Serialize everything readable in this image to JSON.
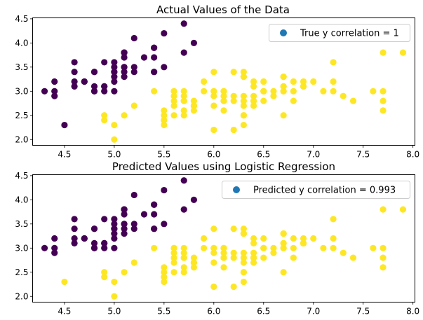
{
  "colors": {
    "class0": "#440154",
    "class1": "#fde725",
    "legend_marker": "#1f77b4",
    "axes": "#000000",
    "legend_border": "#cccccc"
  },
  "chart_data": [
    {
      "type": "scatter",
      "title": "Actual Values of the Data",
      "xlim": [
        4.18,
        8.02
      ],
      "ylim": [
        1.88,
        4.52
      ],
      "xticks": [
        4.5,
        5.0,
        5.5,
        6.0,
        6.5,
        7.0,
        7.5,
        8.0
      ],
      "xtick_labels": [
        "4.5",
        "5.0",
        "5.5",
        "6.0",
        "6.5",
        "7.0",
        "7.5",
        "8.0"
      ],
      "yticks": [
        2.0,
        2.5,
        3.0,
        3.5,
        4.0,
        4.5
      ],
      "ytick_labels": [
        "2.0",
        "2.5",
        "3.0",
        "3.5",
        "4.0",
        "4.5"
      ],
      "legend": {
        "label": "True y correlation = 1",
        "position": "upper right"
      },
      "grid": false,
      "series": [
        {
          "class": 0,
          "color": "#440154",
          "x": [
            4.3,
            4.4,
            4.4,
            4.4,
            4.5,
            4.6,
            4.6,
            4.6,
            4.6,
            4.7,
            4.7,
            4.8,
            4.8,
            4.8,
            4.8,
            4.8,
            4.9,
            4.9,
            4.9,
            4.9,
            5.0,
            5.0,
            5.0,
            5.0,
            5.0,
            5.0,
            5.0,
            5.1,
            5.1,
            5.1,
            5.1,
            5.1,
            5.1,
            5.1,
            5.1,
            5.2,
            5.2,
            5.2,
            5.3,
            5.4,
            5.4,
            5.4,
            5.4,
            5.4,
            5.5,
            5.5,
            5.7,
            5.7,
            5.8
          ],
          "y": [
            3.0,
            2.9,
            3.0,
            3.2,
            2.3,
            3.1,
            3.2,
            3.4,
            3.6,
            3.2,
            3.2,
            3.0,
            3.0,
            3.1,
            3.4,
            3.4,
            3.0,
            3.1,
            3.1,
            3.6,
            3.0,
            3.2,
            3.3,
            3.4,
            3.4,
            3.5,
            3.6,
            3.3,
            3.4,
            3.5,
            3.5,
            3.7,
            3.8,
            3.8,
            3.8,
            3.4,
            3.5,
            4.1,
            3.7,
            3.4,
            3.4,
            3.7,
            3.9,
            3.9,
            3.5,
            4.2,
            3.8,
            4.4,
            4.0
          ]
        },
        {
          "class": 1,
          "color": "#fde725",
          "x": [
            4.9,
            4.9,
            5.0,
            5.0,
            5.1,
            5.2,
            5.4,
            5.5,
            5.5,
            5.5,
            5.5,
            5.5,
            5.6,
            5.6,
            5.6,
            5.6,
            5.6,
            5.6,
            5.7,
            5.7,
            5.7,
            5.7,
            5.7,
            5.7,
            5.8,
            5.8,
            5.8,
            5.8,
            5.8,
            5.9,
            5.9,
            6.0,
            6.0,
            6.0,
            6.0,
            6.0,
            6.0,
            6.1,
            6.1,
            6.1,
            6.1,
            6.1,
            6.1,
            6.2,
            6.2,
            6.2,
            6.2,
            6.3,
            6.3,
            6.3,
            6.3,
            6.3,
            6.3,
            6.3,
            6.3,
            6.3,
            6.4,
            6.4,
            6.4,
            6.4,
            6.4,
            6.4,
            6.5,
            6.5,
            6.5,
            6.5,
            6.5,
            6.6,
            6.6,
            6.7,
            6.7,
            6.7,
            6.7,
            6.7,
            6.7,
            6.7,
            6.8,
            6.8,
            6.8,
            6.9,
            6.9,
            6.9,
            6.9,
            7.0,
            7.1,
            7.2,
            7.2,
            7.2,
            7.3,
            7.4,
            7.6,
            7.7,
            7.7,
            7.7,
            7.7,
            7.9
          ],
          "y": [
            2.4,
            2.5,
            2.0,
            2.3,
            2.5,
            2.7,
            3.0,
            2.3,
            2.4,
            2.4,
            2.5,
            2.6,
            2.5,
            2.7,
            2.8,
            2.9,
            3.0,
            3.0,
            2.5,
            2.6,
            2.8,
            2.8,
            2.9,
            3.0,
            2.6,
            2.7,
            2.7,
            2.7,
            2.8,
            3.0,
            3.2,
            2.2,
            2.7,
            2.9,
            3.0,
            3.0,
            3.4,
            2.6,
            2.8,
            2.8,
            2.9,
            3.0,
            3.0,
            2.2,
            2.8,
            2.9,
            3.4,
            2.3,
            2.5,
            2.5,
            2.7,
            2.8,
            2.9,
            3.3,
            3.3,
            3.4,
            2.7,
            2.8,
            2.8,
            2.9,
            3.1,
            3.2,
            2.8,
            3.0,
            3.0,
            3.0,
            3.2,
            2.9,
            3.0,
            2.5,
            3.0,
            3.0,
            3.1,
            3.1,
            3.3,
            3.3,
            2.8,
            3.0,
            3.2,
            3.1,
            3.1,
            3.1,
            3.2,
            3.2,
            3.0,
            3.0,
            3.2,
            3.6,
            2.9,
            2.8,
            3.0,
            2.6,
            2.8,
            3.0,
            3.8,
            3.8
          ]
        }
      ]
    },
    {
      "type": "scatter",
      "title": "Predicted Values using Logistic Regression",
      "xlim": [
        4.18,
        8.02
      ],
      "ylim": [
        1.88,
        4.52
      ],
      "xticks": [
        4.5,
        5.0,
        5.5,
        6.0,
        6.5,
        7.0,
        7.5,
        8.0
      ],
      "xtick_labels": [
        "4.5",
        "5.0",
        "5.5",
        "6.0",
        "6.5",
        "7.0",
        "7.5",
        "8.0"
      ],
      "yticks": [
        2.0,
        2.5,
        3.0,
        3.5,
        4.0,
        4.5
      ],
      "ytick_labels": [
        "2.0",
        "2.5",
        "3.0",
        "3.5",
        "4.0",
        "4.5"
      ],
      "legend": {
        "label": "Predicted y correlation = 0.993",
        "position": "upper right"
      },
      "grid": false,
      "series": [
        {
          "class": 0,
          "color": "#440154",
          "x": [
            4.3,
            4.4,
            4.4,
            4.4,
            4.6,
            4.6,
            4.6,
            4.6,
            4.7,
            4.7,
            4.8,
            4.8,
            4.8,
            4.8,
            4.8,
            4.9,
            4.9,
            4.9,
            4.9,
            5.0,
            5.0,
            5.0,
            5.0,
            5.0,
            5.0,
            5.0,
            5.1,
            5.1,
            5.1,
            5.1,
            5.1,
            5.1,
            5.1,
            5.1,
            5.2,
            5.2,
            5.2,
            5.3,
            5.4,
            5.4,
            5.4,
            5.4,
            5.4,
            5.5,
            5.5,
            5.7,
            5.7,
            5.8
          ],
          "y": [
            3.0,
            2.9,
            3.0,
            3.2,
            3.1,
            3.2,
            3.4,
            3.6,
            3.2,
            3.2,
            3.0,
            3.0,
            3.1,
            3.4,
            3.4,
            3.0,
            3.1,
            3.1,
            3.6,
            3.0,
            3.2,
            3.3,
            3.4,
            3.4,
            3.5,
            3.6,
            3.3,
            3.4,
            3.5,
            3.5,
            3.7,
            3.8,
            3.8,
            3.8,
            3.4,
            3.5,
            4.1,
            3.7,
            3.4,
            3.4,
            3.7,
            3.9,
            3.9,
            3.5,
            4.2,
            3.8,
            4.4,
            4.0
          ]
        },
        {
          "class": 1,
          "color": "#fde725",
          "x": [
            4.5,
            4.9,
            4.9,
            5.0,
            5.0,
            5.1,
            5.2,
            5.4,
            5.5,
            5.5,
            5.5,
            5.5,
            5.5,
            5.6,
            5.6,
            5.6,
            5.6,
            5.6,
            5.6,
            5.7,
            5.7,
            5.7,
            5.7,
            5.7,
            5.7,
            5.8,
            5.8,
            5.8,
            5.8,
            5.8,
            5.9,
            5.9,
            6.0,
            6.0,
            6.0,
            6.0,
            6.0,
            6.0,
            6.1,
            6.1,
            6.1,
            6.1,
            6.1,
            6.1,
            6.2,
            6.2,
            6.2,
            6.2,
            6.3,
            6.3,
            6.3,
            6.3,
            6.3,
            6.3,
            6.3,
            6.3,
            6.3,
            6.4,
            6.4,
            6.4,
            6.4,
            6.4,
            6.4,
            6.5,
            6.5,
            6.5,
            6.5,
            6.5,
            6.6,
            6.6,
            6.7,
            6.7,
            6.7,
            6.7,
            6.7,
            6.7,
            6.7,
            6.8,
            6.8,
            6.8,
            6.9,
            6.9,
            6.9,
            6.9,
            7.0,
            7.1,
            7.2,
            7.2,
            7.2,
            7.3,
            7.4,
            7.6,
            7.7,
            7.7,
            7.7,
            7.7,
            7.9
          ],
          "y": [
            2.3,
            2.4,
            2.5,
            2.0,
            2.3,
            2.5,
            2.7,
            3.0,
            2.3,
            2.4,
            2.4,
            2.5,
            2.6,
            2.5,
            2.7,
            2.8,
            2.9,
            3.0,
            3.0,
            2.5,
            2.6,
            2.8,
            2.8,
            2.9,
            3.0,
            2.6,
            2.7,
            2.7,
            2.7,
            2.8,
            3.0,
            3.2,
            2.2,
            2.7,
            2.9,
            3.0,
            3.0,
            3.4,
            2.6,
            2.8,
            2.8,
            2.9,
            3.0,
            3.0,
            2.2,
            2.8,
            2.9,
            3.4,
            2.3,
            2.5,
            2.5,
            2.7,
            2.8,
            2.9,
            3.3,
            3.3,
            3.4,
            2.7,
            2.8,
            2.8,
            2.9,
            3.1,
            3.2,
            2.8,
            3.0,
            3.0,
            3.0,
            3.2,
            2.9,
            3.0,
            2.5,
            3.0,
            3.0,
            3.1,
            3.1,
            3.3,
            3.3,
            2.8,
            3.0,
            3.2,
            3.1,
            3.1,
            3.1,
            3.2,
            3.2,
            3.0,
            3.0,
            3.2,
            3.6,
            2.9,
            2.8,
            3.0,
            2.6,
            2.8,
            3.0,
            3.8,
            3.8
          ]
        }
      ]
    }
  ]
}
